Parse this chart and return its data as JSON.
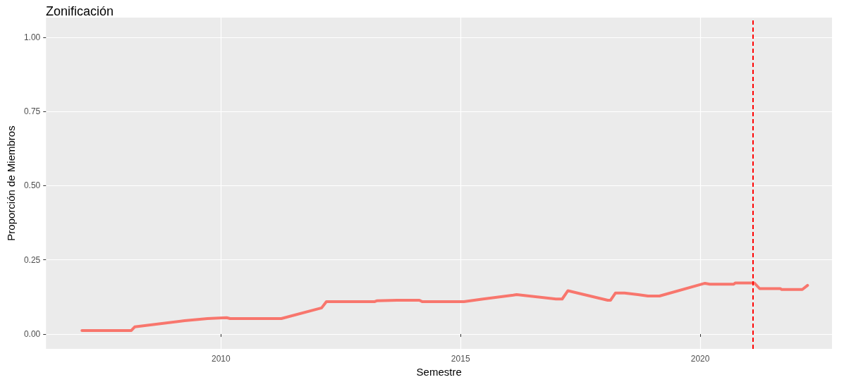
{
  "chart_data": {
    "type": "line",
    "title": "Zonificación",
    "xlabel": "Semestre",
    "ylabel": "Proporción de Miembros",
    "x": [
      2007.1,
      2008.13,
      2008.2,
      2009.24,
      2009.72,
      2010.12,
      2010.19,
      2011.26,
      2012.1,
      2012.2,
      2013.2,
      2013.25,
      2013.67,
      2014.14,
      2014.2,
      2015.07,
      2015.47,
      2016.1,
      2016.17,
      2016.99,
      2017.12,
      2017.24,
      2018.07,
      2018.13,
      2018.23,
      2018.42,
      2018.7,
      2018.91,
      2019.15,
      2020.1,
      2020.2,
      2020.7,
      2020.73,
      2021.13,
      2021.24,
      2021.67,
      2021.7,
      2022.13,
      2022.24
    ],
    "series": [
      {
        "color": "#f8766d",
        "values": [
          0.012,
          0.012,
          0.024,
          0.045,
          0.052,
          0.055,
          0.052,
          0.052,
          0.088,
          0.109,
          0.109,
          0.112,
          0.114,
          0.114,
          0.109,
          0.109,
          0.118,
          0.131,
          0.133,
          0.118,
          0.118,
          0.146,
          0.114,
          0.114,
          0.138,
          0.138,
          0.133,
          0.128,
          0.128,
          0.171,
          0.168,
          0.168,
          0.172,
          0.172,
          0.153,
          0.153,
          0.15,
          0.15,
          0.164
        ]
      }
    ],
    "xlim": [
      2006.35,
      2022.75
    ],
    "xticks": [
      2010,
      2015,
      2020
    ],
    "ylim": [
      -0.05,
      1.066
    ],
    "yticks": [
      {
        "value": 0,
        "label": "0.00"
      },
      {
        "value": 0.25,
        "label": "0.25"
      },
      {
        "value": 0.5,
        "label": "0.50"
      },
      {
        "value": 0.75,
        "label": "0.75"
      },
      {
        "value": 1,
        "label": "1.00"
      }
    ],
    "ref_lines": [
      {
        "axis": "x",
        "value": 2021.1,
        "color": "#ff0000",
        "line_style": "dashed"
      }
    ],
    "grid": true,
    "marker": "none",
    "line_style": "solid"
  }
}
